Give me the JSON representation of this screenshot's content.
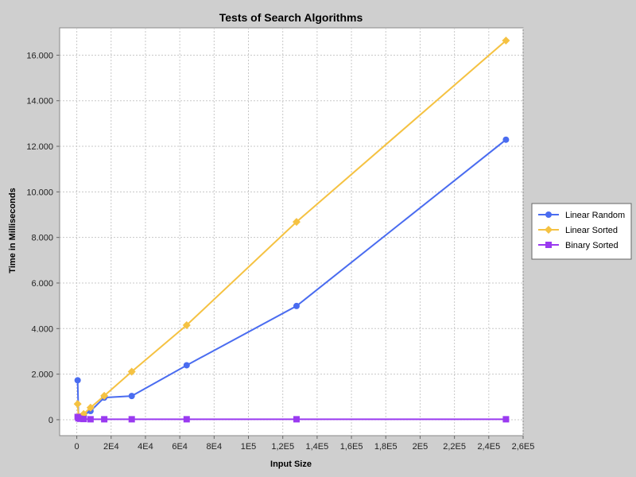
{
  "chart_data": {
    "type": "line",
    "title": "Tests of Search Algorithms",
    "xlabel": "Input Size",
    "ylabel": "Time in Milliseconds",
    "xlim": [
      -10000,
      260000
    ],
    "ylim": [
      -700,
      17200
    ],
    "xticks": [
      0,
      20000,
      40000,
      60000,
      80000,
      100000,
      120000,
      140000,
      160000,
      180000,
      200000,
      220000,
      240000,
      260000
    ],
    "xtick_labels": [
      "0",
      "2E4",
      "4E4",
      "6E4",
      "8E4",
      "1E5",
      "1,2E5",
      "1,4E5",
      "1,6E5",
      "1,8E5",
      "2E5",
      "2,2E5",
      "2,4E5",
      "2,6E5"
    ],
    "yticks": [
      0,
      2000,
      4000,
      6000,
      8000,
      10000,
      12000,
      14000,
      16000
    ],
    "ytick_labels": [
      "0",
      "2.000",
      "4.000",
      "6.000",
      "8.000",
      "10.000",
      "12.000",
      "14.000",
      "16.000"
    ],
    "grid": true,
    "legend_position": "right",
    "series": [
      {
        "name": "Linear Random",
        "color": "#4a6cf0",
        "marker": "circle",
        "x": [
          500,
          1000,
          2000,
          4000,
          8000,
          16000,
          32000,
          64000,
          128000,
          250000
        ],
        "y": [
          1730,
          100,
          120,
          200,
          380,
          970,
          1040,
          2390,
          4990,
          12290
        ]
      },
      {
        "name": "Linear Sorted",
        "color": "#f5c242",
        "marker": "diamond",
        "x": [
          500,
          1000,
          2000,
          4000,
          8000,
          16000,
          32000,
          64000,
          128000,
          250000
        ],
        "y": [
          690,
          150,
          120,
          250,
          530,
          1050,
          2110,
          4150,
          8680,
          16640
        ]
      },
      {
        "name": "Binary Sorted",
        "color": "#9a3af0",
        "marker": "square",
        "x": [
          500,
          1000,
          2000,
          4000,
          8000,
          16000,
          32000,
          64000,
          128000,
          250000
        ],
        "y": [
          120,
          60,
          40,
          30,
          20,
          20,
          20,
          20,
          20,
          20
        ]
      }
    ]
  }
}
